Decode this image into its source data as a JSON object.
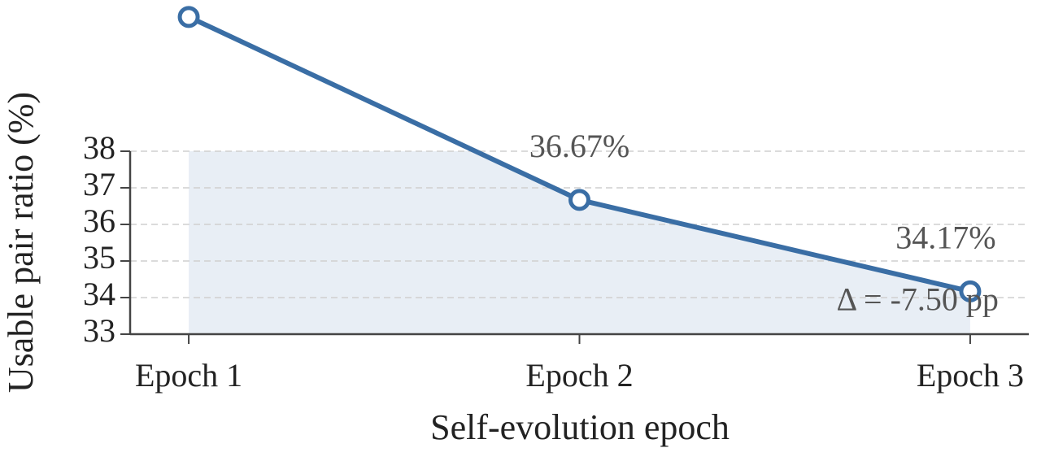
{
  "chart_data": {
    "type": "line",
    "x_label": "Self-evolution epoch",
    "y_label": "Usable pair ratio (%)",
    "categories": [
      "Epoch 1",
      "Epoch 2",
      "Epoch 3"
    ],
    "series": [
      {
        "name": "Usable pair ratio",
        "color": "#3a6ea5",
        "values": [
          41.67,
          36.67,
          34.17
        ],
        "value_labels": [
          null,
          "36.67%",
          "34.17%"
        ]
      }
    ],
    "annotation": "Δ = -7.50 pp",
    "ylim": [
      33,
      38
    ],
    "yticks": [
      33,
      34,
      35,
      36,
      37,
      38
    ],
    "grid": true,
    "fill_color": "#e8eef5"
  }
}
